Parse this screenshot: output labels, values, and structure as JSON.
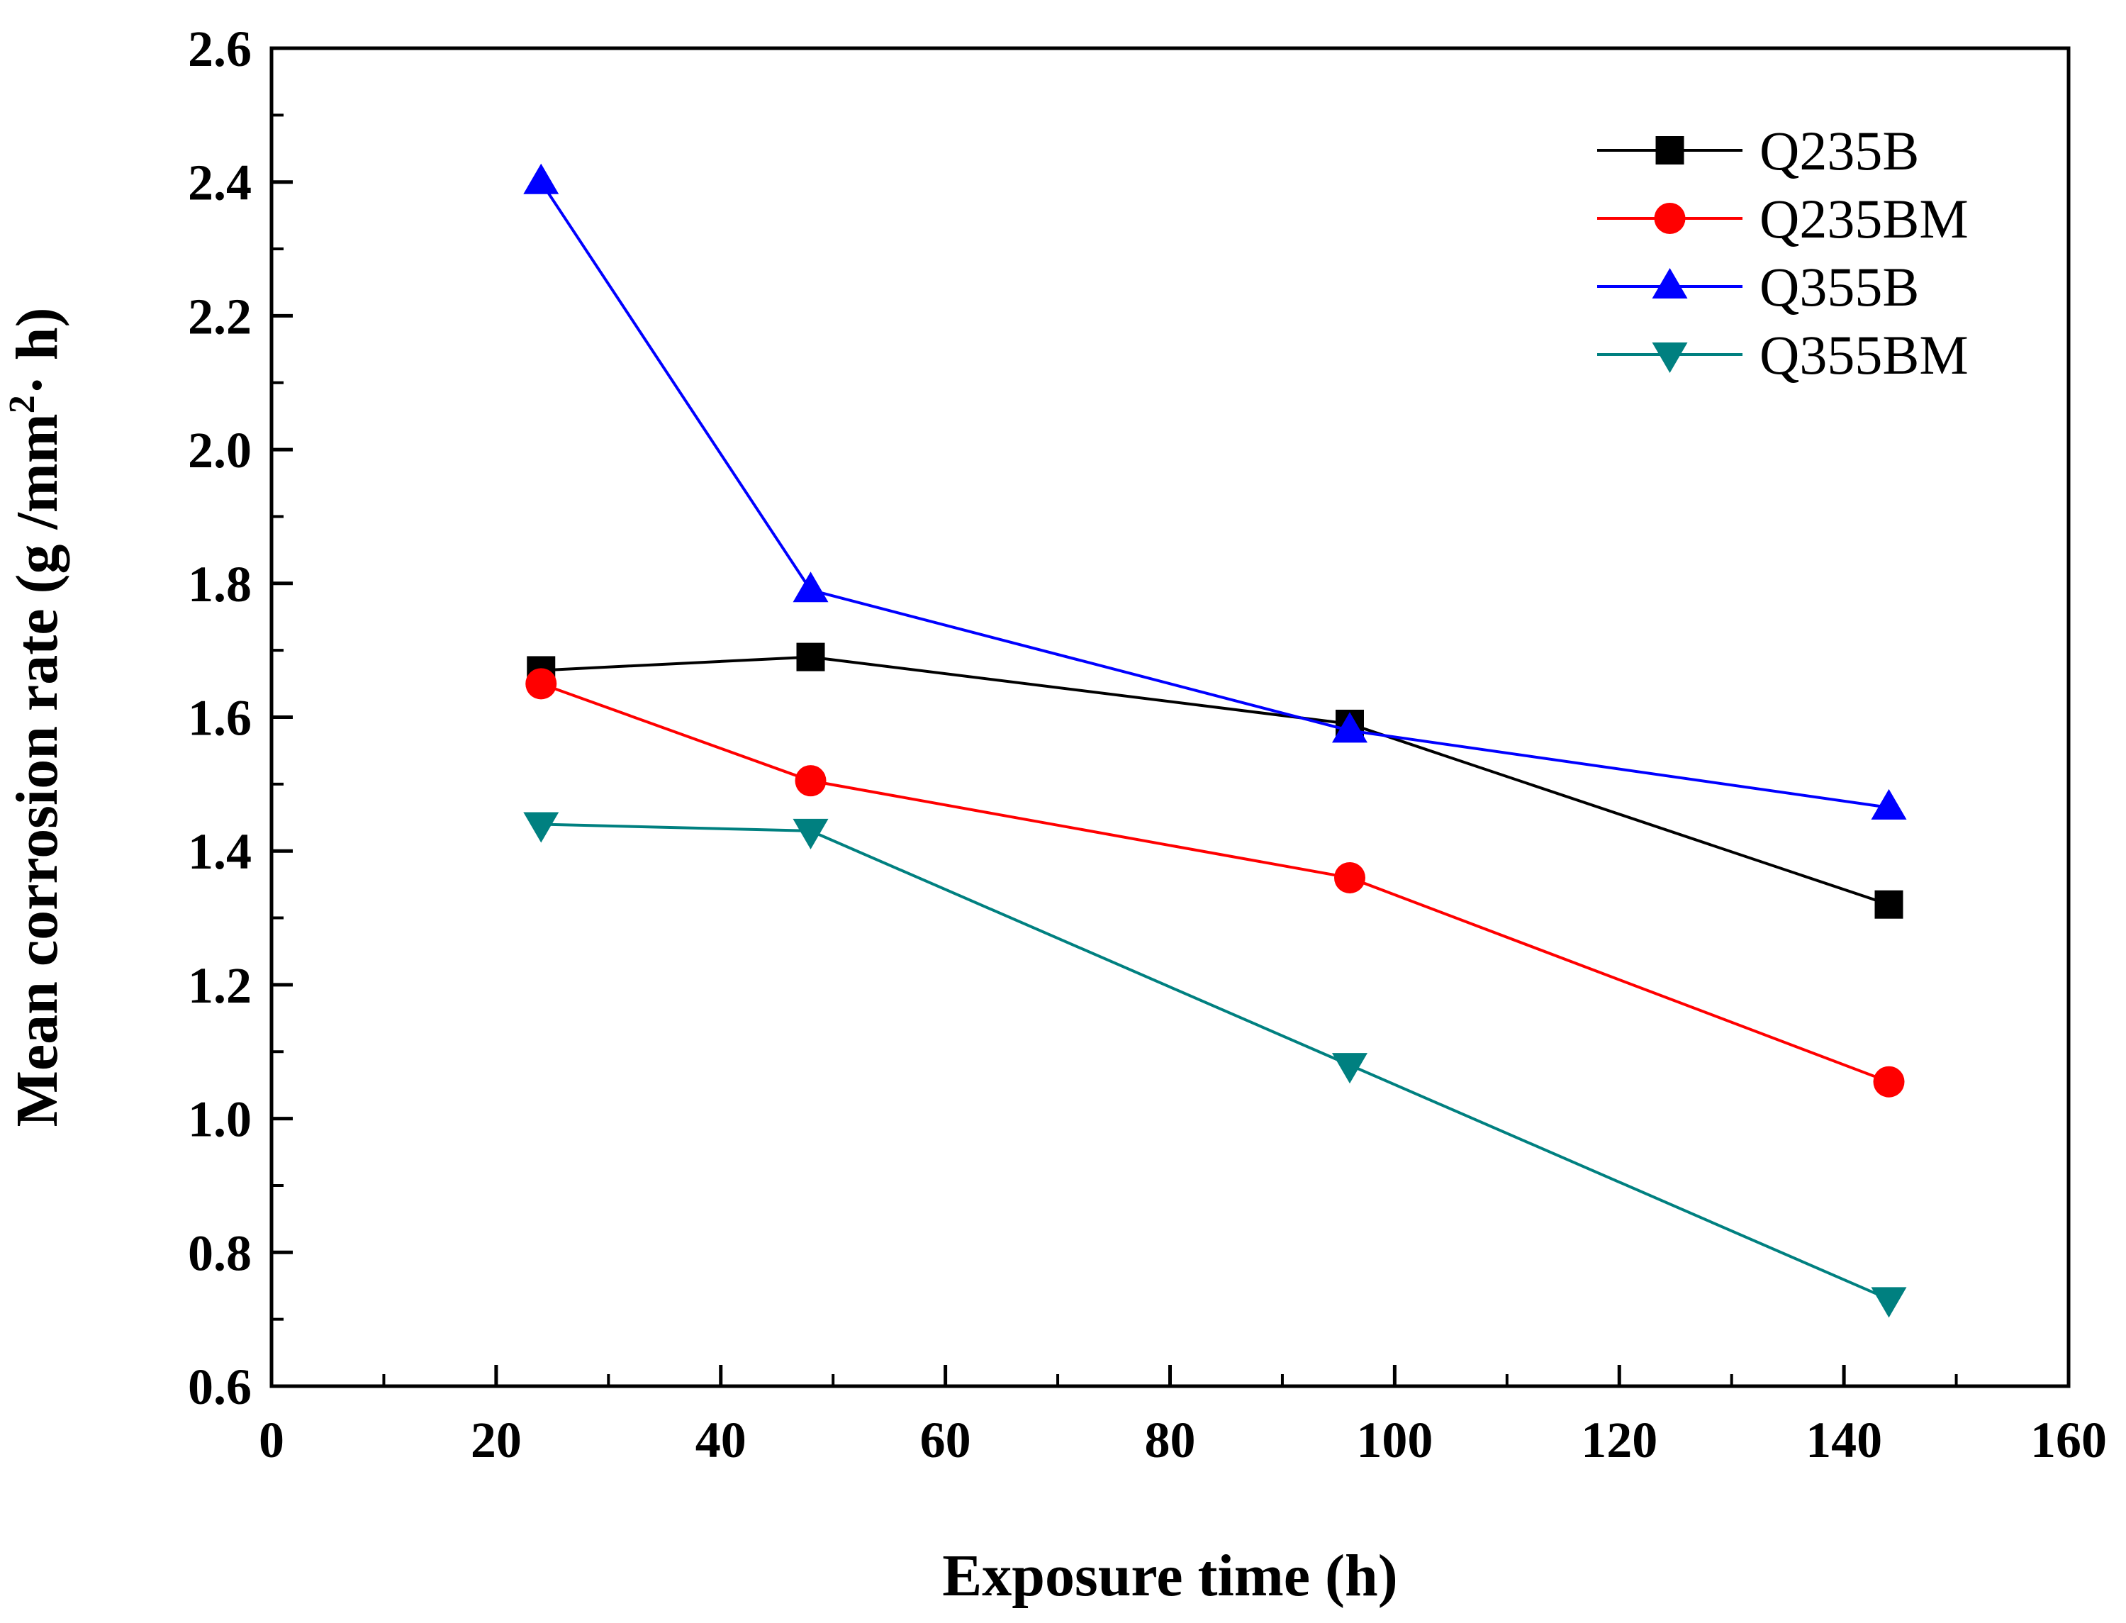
{
  "chart_data": {
    "type": "line",
    "title": "",
    "xlabel": "Exposure time (h)",
    "ylabel_main": "Mean corrosion rate (g /mm",
    "ylabel_sup": "2",
    "ylabel_tail": "· h)",
    "xlim": [
      0,
      160
    ],
    "ylim": [
      0.6,
      2.6
    ],
    "x_ticks": [
      "0",
      "20",
      "40",
      "60",
      "80",
      "100",
      "120",
      "140",
      "160"
    ],
    "y_ticks": [
      "0.6",
      "0.8",
      "1.0",
      "1.2",
      "1.4",
      "1.6",
      "1.8",
      "2.0",
      "2.2",
      "2.4",
      "2.6"
    ],
    "grid": false,
    "legend_position": "top-right",
    "x": [
      24,
      48,
      96,
      144
    ],
    "series": [
      {
        "name": "Q235B",
        "marker": "square",
        "color": "#000000",
        "values": [
          1.67,
          1.69,
          1.59,
          1.32
        ]
      },
      {
        "name": "Q235BM",
        "marker": "circle",
        "color": "#ff0000",
        "values": [
          1.65,
          1.505,
          1.36,
          1.055
        ]
      },
      {
        "name": "Q355B",
        "marker": "triangle-up",
        "color": "#0000ff",
        "values": [
          2.4,
          1.79,
          1.58,
          1.465
        ]
      },
      {
        "name": "Q355BM",
        "marker": "triangle-down",
        "color": "#008080",
        "values": [
          1.44,
          1.43,
          1.08,
          0.73
        ]
      }
    ]
  }
}
